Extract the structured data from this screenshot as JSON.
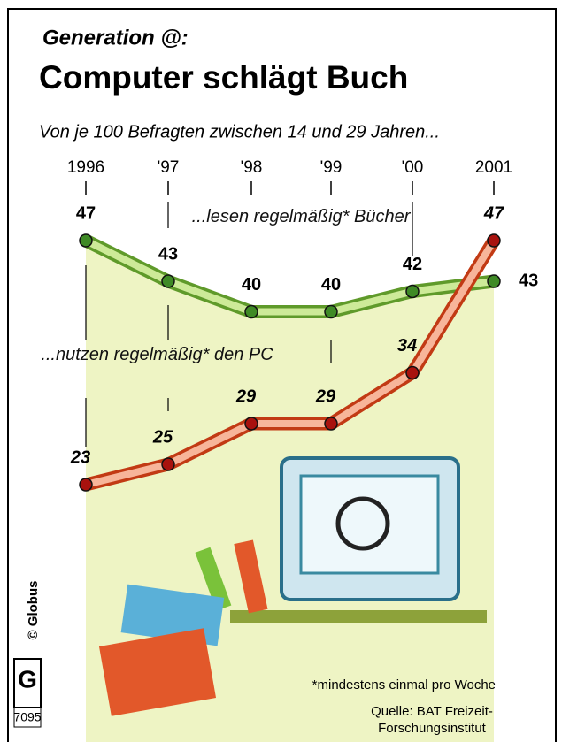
{
  "chart_data": {
    "type": "line",
    "kicker": "Generation @:",
    "title": "Computer schlägt Buch",
    "subtitle": "Von je 100 Befragten zwischen 14 und 29 Jahren...",
    "categories": [
      "1996",
      "'97",
      "'98",
      "'99",
      "'00",
      "2001"
    ],
    "series": [
      {
        "name": "...lesen regelmäßig* Bücher",
        "color": "#7cb83a",
        "values": [
          47,
          43,
          40,
          40,
          42,
          43
        ]
      },
      {
        "name": "...nutzen regelmäßig* den PC",
        "color": "#e2582a",
        "values": [
          23,
          25,
          29,
          29,
          34,
          47
        ]
      }
    ],
    "ylim": [
      20,
      50
    ],
    "footnote": "*mindestens einmal pro Woche",
    "source": "Quelle: BAT Freizeit-Forschungsinstitut",
    "credit": "© Globus",
    "number": "7095"
  }
}
